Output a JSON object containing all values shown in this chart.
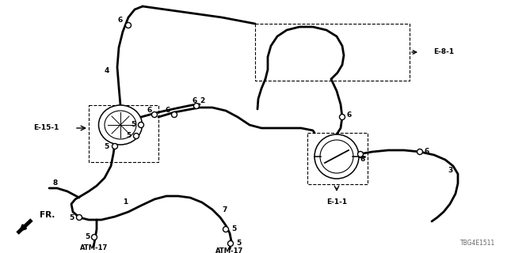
{
  "bg_color": "#ffffff",
  "part_code": "TBG4E1511",
  "labels": {
    "E81": "E-8-1",
    "E151": "E-15-1",
    "E11": "E-1-1",
    "FR": "FR.",
    "ATM17": "ATM-17"
  },
  "numbers": [
    "1",
    "2",
    "3",
    "4",
    "5",
    "6",
    "7",
    "8"
  ]
}
